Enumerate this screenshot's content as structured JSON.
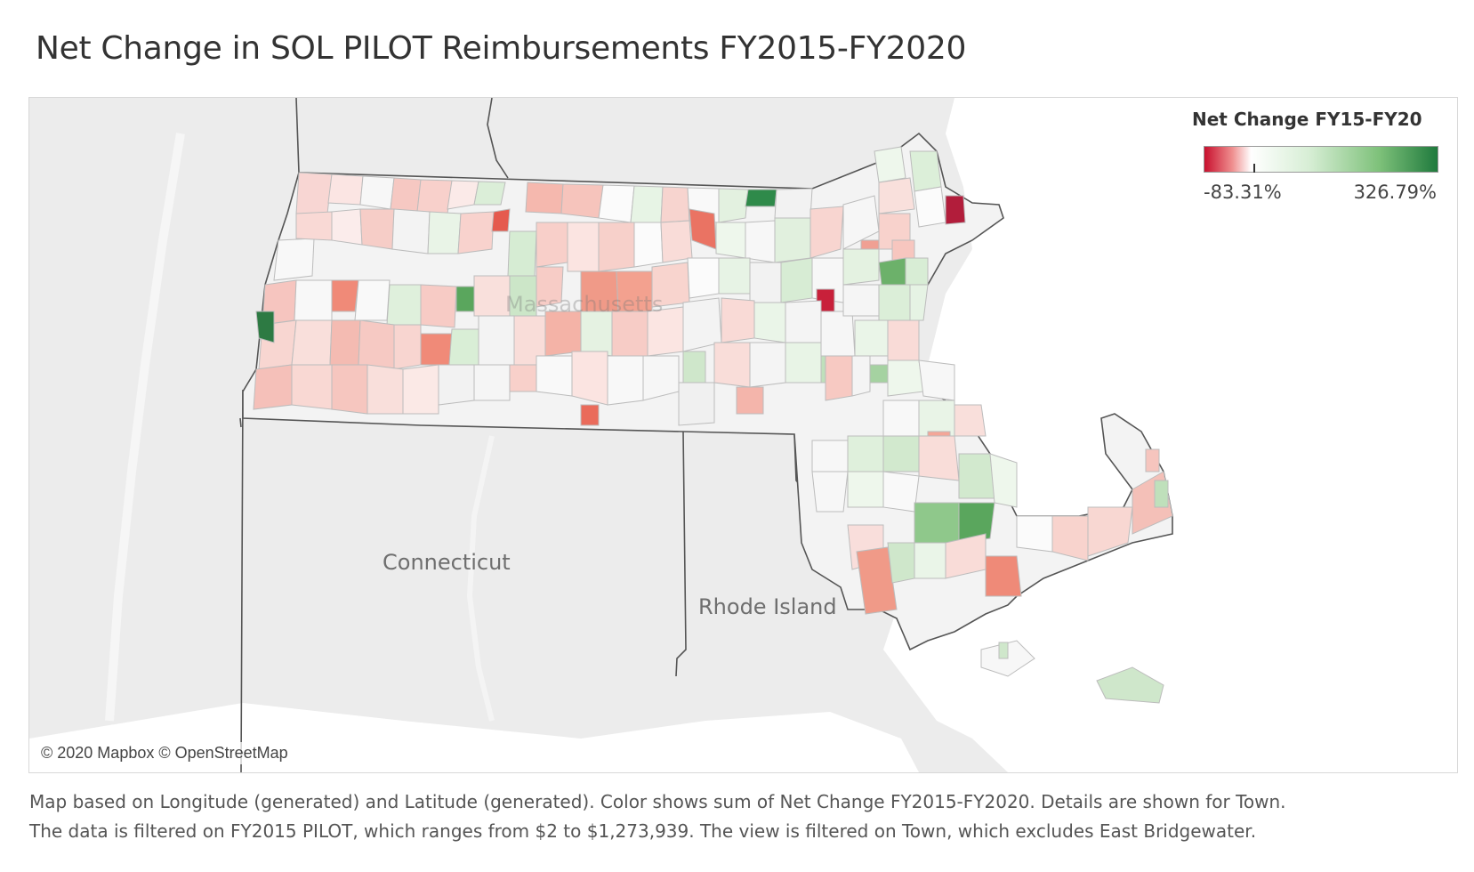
{
  "title": "Net Change in SOL PILOT Reimbursements FY2015-FY2020",
  "legend": {
    "title": "Net Change FY15-FY20",
    "min_label": "-83.31%",
    "max_label": "326.79%",
    "min_value": -83.31,
    "max_value": 326.79,
    "colors": {
      "negative_max": "#c8102e",
      "zero": "#ffffff",
      "positive_max": "#1f7a3d"
    }
  },
  "map": {
    "state_labels": {
      "connecticut": "Connecticut",
      "rhode_island": "Rhode Island",
      "massachusetts": "Massachusetts"
    },
    "attribution": "© 2020 Mapbox © OpenStreetMap",
    "background_color": "#ececec",
    "water_color": "#ffffff"
  },
  "caption": {
    "line1": "Map based on Longitude (generated) and Latitude (generated).  Color shows sum of Net Change FY2015-FY2020.  Details are shown for Town.",
    "line2": "The data is filtered on FY2015 PILOT, which ranges from $2 to $1,273,939. The view is filtered on Town, which excludes East Bridgewater."
  }
}
